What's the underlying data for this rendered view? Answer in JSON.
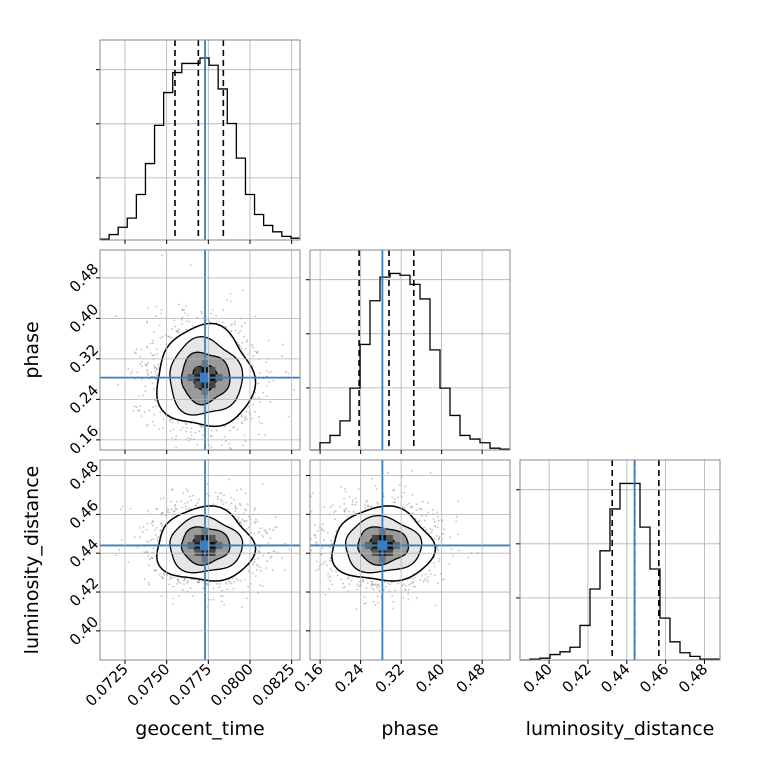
{
  "chart_data": {
    "type": "corner",
    "parameters": [
      "geocent_time",
      "phase",
      "luminosity_distance"
    ],
    "truths": [
      0.0773,
      0.283,
      0.444
    ],
    "colors": {
      "truth": "#3b7dbf",
      "hist": "#000000",
      "grid": "#b0b0b0",
      "frame": "#888888"
    },
    "grid": true,
    "axes": [
      {
        "name": "geocent_time",
        "range": [
          0.071,
          0.083
        ],
        "ticks": [
          0.0725,
          0.075,
          0.0775,
          0.08,
          0.0825
        ],
        "tick_labels": [
          "0.0725",
          "0.0750",
          "0.0775",
          "0.0800",
          "0.0825"
        ],
        "quantiles": [
          0.0755,
          0.0769,
          0.0784
        ],
        "hist_y_ticks": [
          0.3,
          0.6,
          0.9
        ],
        "hist": [
          0.005,
          0.03,
          0.07,
          0.12,
          0.25,
          0.42,
          0.63,
          0.81,
          0.92,
          0.97,
          0.97,
          1.0,
          0.96,
          0.83,
          0.64,
          0.45,
          0.25,
          0.14,
          0.08,
          0.045,
          0.02,
          0.01
        ]
      },
      {
        "name": "phase",
        "range": [
          0.14,
          0.535
        ],
        "ticks": [
          0.16,
          0.24,
          0.32,
          0.4,
          0.48
        ],
        "tick_labels": [
          "0.16",
          "0.24",
          "0.32",
          "0.40",
          "0.48"
        ],
        "quantiles": [
          0.237,
          0.296,
          0.345
        ],
        "hist_y_ticks": [
          0.3,
          0.6,
          0.9
        ],
        "hist": [
          0.0,
          0.04,
          0.08,
          0.16,
          0.34,
          0.58,
          0.82,
          0.95,
          0.97,
          0.96,
          0.91,
          0.83,
          0.55,
          0.34,
          0.19,
          0.08,
          0.06,
          0.04,
          0.01,
          0.005
        ]
      },
      {
        "name": "luminosity_distance",
        "range": [
          0.385,
          0.488
        ],
        "ticks": [
          0.4,
          0.42,
          0.44,
          0.46,
          0.48
        ],
        "tick_labels": [
          "0.40",
          "0.42",
          "0.44",
          "0.46",
          "0.48"
        ],
        "quantiles": [
          0.4325,
          0.4441,
          0.4565
        ],
        "hist_y_ticks": [
          0.3,
          0.6,
          0.9
        ],
        "hist": [
          0.0,
          0.005,
          0.01,
          0.03,
          0.045,
          0.07,
          0.19,
          0.39,
          0.6,
          0.83,
          0.97,
          0.97,
          0.73,
          0.5,
          0.23,
          0.1,
          0.04,
          0.02,
          0.005,
          0.005
        ]
      }
    ],
    "pairs": [
      {
        "x": "geocent_time",
        "y": "phase",
        "center": [
          0.0773,
          0.283
        ],
        "sigma": [
          0.00145,
          0.05
        ],
        "contours_sigma": [
          0.5,
          1.0,
          1.5,
          2.0
        ]
      },
      {
        "x": "geocent_time",
        "y": "luminosity_distance",
        "center": [
          0.0773,
          0.444
        ],
        "sigma": [
          0.00145,
          0.0095
        ],
        "contours_sigma": [
          0.5,
          1.0,
          1.5,
          2.0
        ]
      },
      {
        "x": "phase",
        "y": "luminosity_distance",
        "center": [
          0.283,
          0.444
        ],
        "sigma": [
          0.05,
          0.0095
        ],
        "contours_sigma": [
          0.5,
          1.0,
          1.5,
          2.0
        ]
      }
    ]
  }
}
